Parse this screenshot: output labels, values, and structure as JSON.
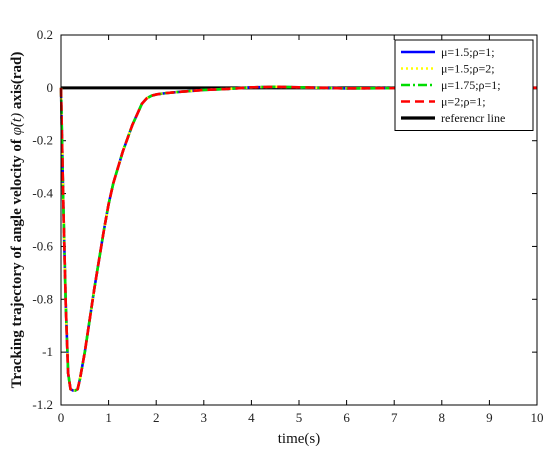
{
  "chart_data": {
    "type": "line",
    "title": "",
    "xlabel": "time(s)",
    "ylabel_prefix": "Tracking trajectory of angle velocity of ",
    "ylabel_symbol": "φ̇(t)",
    "ylabel_suffix": " axis(rad)",
    "xlim": [
      0,
      10
    ],
    "ylim": [
      -1.2,
      0.2
    ],
    "xticks": [
      "0",
      "1",
      "2",
      "3",
      "4",
      "5",
      "6",
      "7",
      "8",
      "9",
      "10"
    ],
    "yticks": [
      "0.2",
      "0",
      "-0.2",
      "-0.4",
      "-0.6",
      "-0.8",
      "-1",
      "-1.2"
    ],
    "grid": false,
    "legend_position": "top-right",
    "x": [
      0,
      0.05,
      0.1,
      0.15,
      0.2,
      0.25,
      0.3,
      0.35,
      0.4,
      0.5,
      0.6,
      0.7,
      0.8,
      0.9,
      1.0,
      1.1,
      1.2,
      1.3,
      1.4,
      1.5,
      1.6,
      1.7,
      1.8,
      1.9,
      2.0,
      2.2,
      2.5,
      3.0,
      3.5,
      4.0,
      4.5,
      5.0,
      5.5,
      6.0,
      7.0,
      8.0,
      9.0,
      10.0
    ],
    "series": [
      {
        "name": "μ=1.5;ρ=1;",
        "color": "#0000ff",
        "style": "solid",
        "values": [
          0,
          -0.45,
          -0.82,
          -1.08,
          -1.14,
          -1.145,
          -1.145,
          -1.14,
          -1.1,
          -1.0,
          -0.88,
          -0.76,
          -0.65,
          -0.54,
          -0.44,
          -0.36,
          -0.3,
          -0.24,
          -0.19,
          -0.14,
          -0.1,
          -0.06,
          -0.04,
          -0.03,
          -0.025,
          -0.02,
          -0.015,
          -0.008,
          -0.004,
          0.002,
          0.004,
          0.002,
          0.0,
          -0.002,
          -0.001,
          0.0,
          0.0,
          0.0
        ]
      },
      {
        "name": "μ=1.5;ρ=2;",
        "color": "#ffff00",
        "style": "dotted",
        "values": [
          0,
          -0.45,
          -0.82,
          -1.08,
          -1.14,
          -1.145,
          -1.145,
          -1.14,
          -1.1,
          -1.0,
          -0.88,
          -0.76,
          -0.65,
          -0.54,
          -0.44,
          -0.36,
          -0.3,
          -0.24,
          -0.19,
          -0.14,
          -0.1,
          -0.06,
          -0.04,
          -0.03,
          -0.025,
          -0.02,
          -0.015,
          -0.008,
          -0.004,
          0.002,
          0.004,
          0.002,
          0.0,
          -0.002,
          -0.001,
          0.0,
          0.0,
          0.0
        ]
      },
      {
        "name": "μ=1.75;ρ=1;",
        "color": "#00dd00",
        "style": "dashdot",
        "values": [
          0,
          -0.45,
          -0.82,
          -1.08,
          -1.14,
          -1.145,
          -1.145,
          -1.14,
          -1.1,
          -1.0,
          -0.88,
          -0.76,
          -0.65,
          -0.54,
          -0.44,
          -0.36,
          -0.3,
          -0.24,
          -0.19,
          -0.14,
          -0.1,
          -0.06,
          -0.04,
          -0.03,
          -0.025,
          -0.02,
          -0.015,
          -0.008,
          -0.004,
          0.002,
          0.004,
          0.002,
          0.0,
          -0.002,
          -0.001,
          0.0,
          0.0,
          0.0
        ]
      },
      {
        "name": "μ=2;ρ=1;",
        "color": "#ff0000",
        "style": "dashed",
        "values": [
          0,
          -0.45,
          -0.82,
          -1.08,
          -1.14,
          -1.145,
          -1.145,
          -1.14,
          -1.1,
          -1.0,
          -0.88,
          -0.76,
          -0.65,
          -0.54,
          -0.44,
          -0.36,
          -0.3,
          -0.24,
          -0.19,
          -0.14,
          -0.1,
          -0.06,
          -0.04,
          -0.03,
          -0.025,
          -0.02,
          -0.015,
          -0.008,
          -0.004,
          0.002,
          0.004,
          0.002,
          0.0,
          -0.002,
          -0.001,
          0.0,
          0.0,
          0.0
        ]
      },
      {
        "name": "referencr line",
        "color": "#000000",
        "style": "solid",
        "values": [
          0,
          0,
          0,
          0,
          0,
          0,
          0,
          0,
          0,
          0,
          0,
          0,
          0,
          0,
          0,
          0,
          0,
          0,
          0,
          0,
          0,
          0,
          0,
          0,
          0,
          0,
          0,
          0,
          0,
          0,
          0,
          0,
          0,
          0,
          0,
          0,
          0,
          0
        ]
      }
    ]
  }
}
